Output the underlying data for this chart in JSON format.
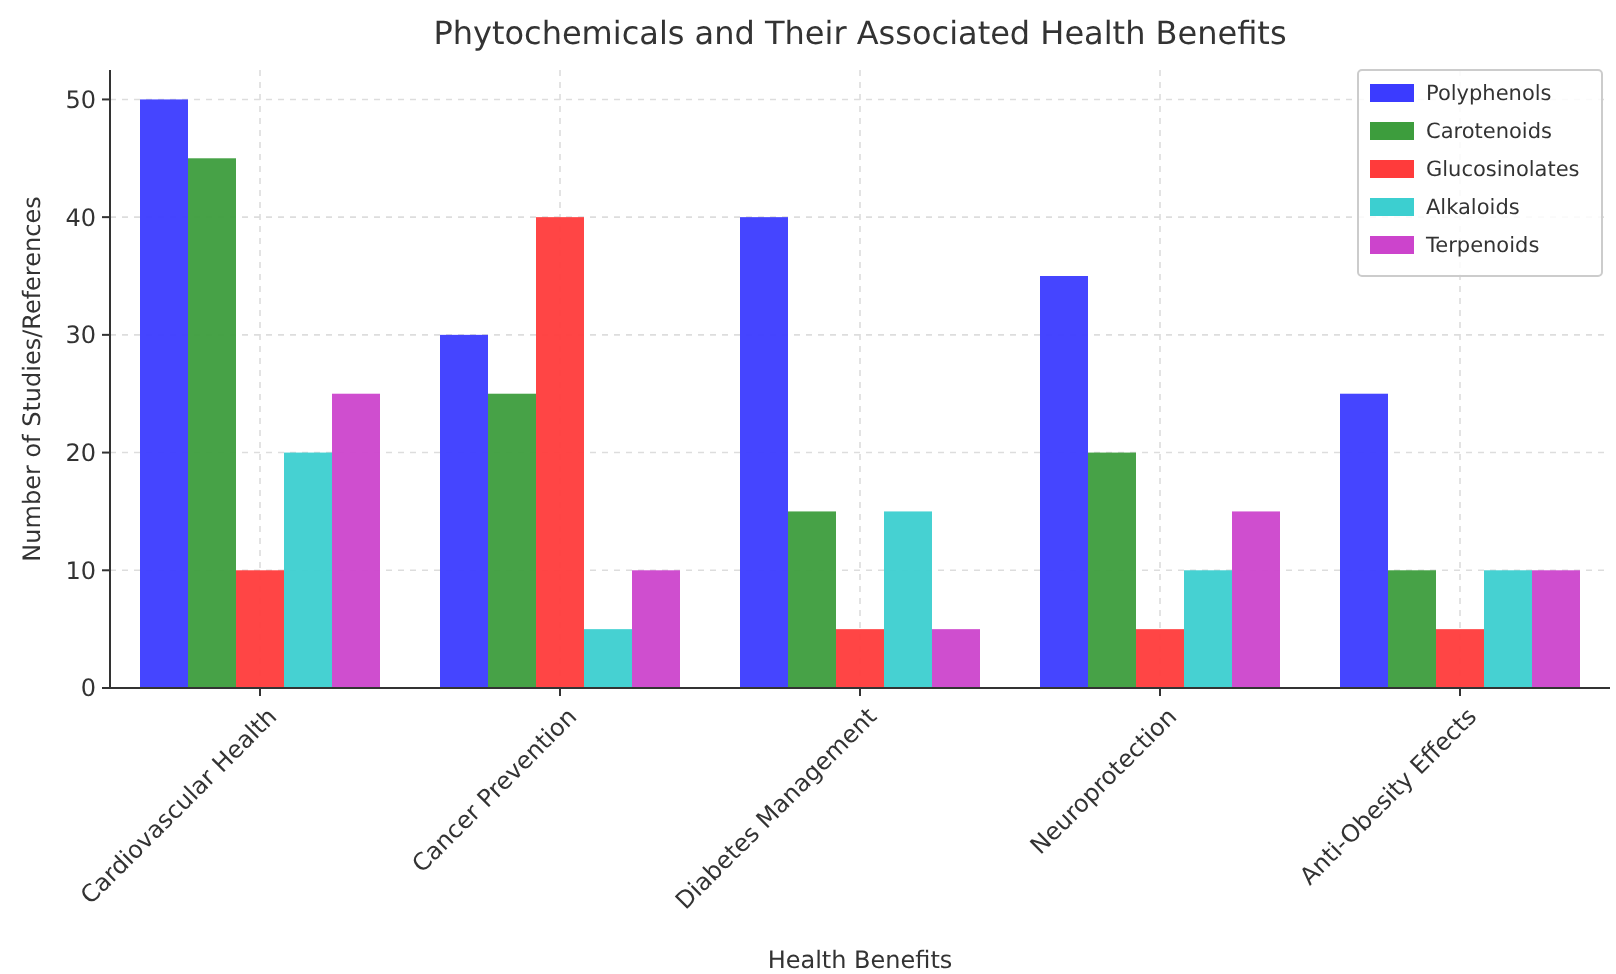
{
  "chart_data": {
    "type": "bar",
    "title": "Phytochemicals and Their Associated Health Benefits",
    "xlabel": "Health Benefits",
    "ylabel": "Number of Studies/References",
    "categories": [
      "Cardiovascular Health",
      "Cancer Prevention",
      "Diabetes Management",
      "Neuroprotection",
      "Anti-Obesity Effects"
    ],
    "series": [
      {
        "name": "Polyphenols",
        "color": "#3b3bff",
        "values": [
          50,
          30,
          40,
          35,
          25
        ]
      },
      {
        "name": "Carotenoids",
        "color": "#3d9d3d",
        "values": [
          45,
          25,
          15,
          20,
          10
        ]
      },
      {
        "name": "Glucosinolates",
        "color": "#ff3b3b",
        "values": [
          10,
          40,
          5,
          5,
          5
        ]
      },
      {
        "name": "Alkaloids",
        "color": "#3ccfd0",
        "values": [
          20,
          5,
          15,
          10,
          10
        ]
      },
      {
        "name": "Terpenoids",
        "color": "#cc44cc",
        "values": [
          25,
          10,
          5,
          15,
          10
        ]
      }
    ],
    "ylim": [
      0,
      52.5
    ],
    "yticks": [
      0,
      10,
      20,
      30,
      40,
      50
    ],
    "grid": true,
    "legend": "top right"
  }
}
